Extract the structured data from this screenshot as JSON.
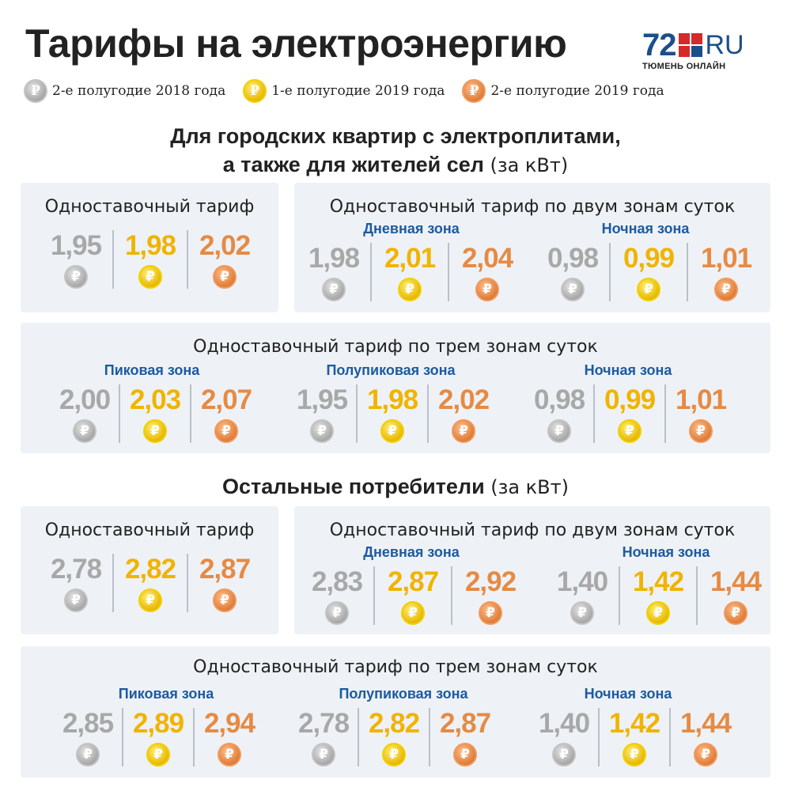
{
  "title": "Тарифы на электроэнергию",
  "logo": {
    "number": "72",
    "domain": "RU",
    "subtitle": "ТЮМЕНЬ ОНЛАЙН"
  },
  "coin_symbol": "₽",
  "colors": {
    "gray": "#a8a8a8",
    "gold": "#f0b400",
    "copper": "#e68a44",
    "zone": "#1d5aa0",
    "panel": "#eef2f6"
  },
  "legend": [
    {
      "label": "2-е полугодие 2018 года",
      "color": "gray"
    },
    {
      "label": "1-е полугодие 2019 года",
      "color": "gold"
    },
    {
      "label": "2-е полугодие 2019 года",
      "color": "copper"
    }
  ],
  "section1": {
    "heading_line1": "Для городских квартир с электроплитами,",
    "heading_line2": "а также для жителей сел",
    "unit": "(за кВт)",
    "single": {
      "title": "Одноставочный тариф",
      "values": [
        "1,95",
        "1,98",
        "2,02"
      ]
    },
    "two_zone": {
      "title": "Одноставочный тариф по двум зонам суток",
      "zones": [
        {
          "name": "Дневная зона",
          "values": [
            "1,98",
            "2,01",
            "2,04"
          ]
        },
        {
          "name": "Ночная зона",
          "values": [
            "0,98",
            "0,99",
            "1,01"
          ]
        }
      ]
    },
    "three_zone": {
      "title": "Одноставочный тариф по трем зонам суток",
      "zones": [
        {
          "name": "Пиковая зона",
          "values": [
            "2,00",
            "2,03",
            "2,07"
          ]
        },
        {
          "name": "Полупиковая зона",
          "values": [
            "1,95",
            "1,98",
            "2,02"
          ]
        },
        {
          "name": "Ночная зона",
          "values": [
            "0,98",
            "0,99",
            "1,01"
          ]
        }
      ]
    }
  },
  "section2": {
    "heading": "Остальные потребители",
    "unit": "(за кВт)",
    "single": {
      "title": "Одноставочный тариф",
      "values": [
        "2,78",
        "2,82",
        "2,87"
      ]
    },
    "two_zone": {
      "title": "Одноставочный тариф по двум зонам суток",
      "zones": [
        {
          "name": "Дневная зона",
          "values": [
            "2,83",
            "2,87",
            "2,92"
          ]
        },
        {
          "name": "Ночная зона",
          "values": [
            "1,40",
            "1,42",
            "1,44"
          ]
        }
      ]
    },
    "three_zone": {
      "title": "Одноставочный тариф по трем зонам суток",
      "zones": [
        {
          "name": "Пиковая зона",
          "values": [
            "2,85",
            "2,89",
            "2,94"
          ]
        },
        {
          "name": "Полупиковая зона",
          "values": [
            "2,78",
            "2,82",
            "2,87"
          ]
        },
        {
          "name": "Ночная зона",
          "values": [
            "1,40",
            "1,42",
            "1,44"
          ]
        }
      ]
    }
  }
}
